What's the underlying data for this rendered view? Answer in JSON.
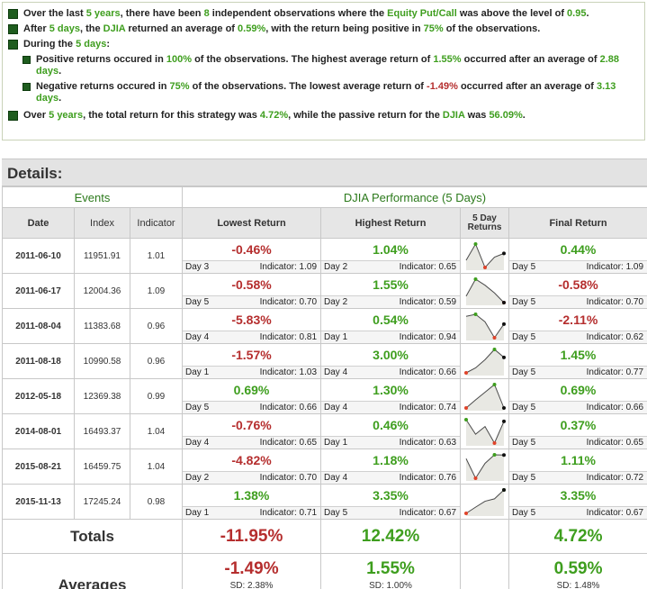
{
  "summary": {
    "b1": [
      "Over the last ",
      "5 years",
      ", there have been ",
      "8",
      " independent observations where the ",
      "Equity Put/Call",
      " was above the level of ",
      "0.95",
      "."
    ],
    "b2": [
      "After ",
      "5 days",
      ", the ",
      "DJIA",
      " returned an average of ",
      "0.59%",
      ", with the return being positive in ",
      "75%",
      " of the observations."
    ],
    "b3": [
      "During the ",
      "5 days",
      ":"
    ],
    "s1": [
      "Positive returns occured in ",
      "100%",
      " of the observations. The highest average return of ",
      "1.55%",
      " occurred after an average of ",
      "2.88 days",
      "."
    ],
    "s2": [
      "Negative returns occured in ",
      "75%",
      " of the observations. The lowest average return of ",
      "-1.49%",
      " occurred after an average of ",
      "3.13 days",
      "."
    ],
    "b4": [
      "Over ",
      "5 years",
      ", the total return for this strategy was ",
      "4.72%",
      ", while the passive return for the ",
      "DJIA",
      " was ",
      "56.09%",
      "."
    ]
  },
  "details": {
    "title": "Details:",
    "group_events": "Events",
    "group_perf": "DJIA Performance (5 Days)",
    "headers": [
      "Date",
      "Index",
      "Indicator",
      "Lowest Return",
      "Highest Return",
      "5 Day Returns",
      "Final Return"
    ],
    "indicator_label": "Indicator:",
    "rows": [
      {
        "date": "2011-06-10",
        "index": "11951.91",
        "indicator": "1.01",
        "low": {
          "v": "-0.46%",
          "day": "Day 3",
          "ind": "1.09"
        },
        "high": {
          "v": "1.04%",
          "day": "Day 2",
          "ind": "0.65"
        },
        "final": {
          "v": "0.44%",
          "day": "Day 5",
          "ind": "1.09"
        }
      },
      {
        "date": "2011-06-17",
        "index": "12004.36",
        "indicator": "1.09",
        "low": {
          "v": "-0.58%",
          "day": "Day 5",
          "ind": "0.70"
        },
        "high": {
          "v": "1.55%",
          "day": "Day 2",
          "ind": "0.59"
        },
        "final": {
          "v": "-0.58%",
          "day": "Day 5",
          "ind": "0.70"
        }
      },
      {
        "date": "2011-08-04",
        "index": "11383.68",
        "indicator": "0.96",
        "low": {
          "v": "-5.83%",
          "day": "Day 4",
          "ind": "0.81"
        },
        "high": {
          "v": "0.54%",
          "day": "Day 1",
          "ind": "0.94"
        },
        "final": {
          "v": "-2.11%",
          "day": "Day 5",
          "ind": "0.62"
        }
      },
      {
        "date": "2011-08-18",
        "index": "10990.58",
        "indicator": "0.96",
        "low": {
          "v": "-1.57%",
          "day": "Day 1",
          "ind": "1.03"
        },
        "high": {
          "v": "3.00%",
          "day": "Day 4",
          "ind": "0.66"
        },
        "final": {
          "v": "1.45%",
          "day": "Day 5",
          "ind": "0.77"
        }
      },
      {
        "date": "2012-05-18",
        "index": "12369.38",
        "indicator": "0.99",
        "low": {
          "v": "0.69%",
          "day": "Day 5",
          "ind": "0.66"
        },
        "high": {
          "v": "1.30%",
          "day": "Day 4",
          "ind": "0.74"
        },
        "final": {
          "v": "0.69%",
          "day": "Day 5",
          "ind": "0.66"
        }
      },
      {
        "date": "2014-08-01",
        "index": "16493.37",
        "indicator": "1.04",
        "low": {
          "v": "-0.76%",
          "day": "Day 4",
          "ind": "0.65"
        },
        "high": {
          "v": "0.46%",
          "day": "Day 1",
          "ind": "0.63"
        },
        "final": {
          "v": "0.37%",
          "day": "Day 5",
          "ind": "0.65"
        }
      },
      {
        "date": "2015-08-21",
        "index": "16459.75",
        "indicator": "1.04",
        "low": {
          "v": "-4.82%",
          "day": "Day 2",
          "ind": "0.70"
        },
        "high": {
          "v": "1.18%",
          "day": "Day 4",
          "ind": "0.76"
        },
        "final": {
          "v": "1.11%",
          "day": "Day 5",
          "ind": "0.72"
        }
      },
      {
        "date": "2015-11-13",
        "index": "17245.24",
        "indicator": "0.98",
        "low": {
          "v": "1.38%",
          "day": "Day 1",
          "ind": "0.71"
        },
        "high": {
          "v": "3.35%",
          "day": "Day 5",
          "ind": "0.67"
        },
        "final": {
          "v": "3.35%",
          "day": "Day 5",
          "ind": "0.67"
        }
      }
    ],
    "totals_label": "Totals",
    "totals": {
      "low": "-11.95%",
      "high": "12.42%",
      "final": "4.72%"
    },
    "averages_label": "Averages",
    "averages": {
      "low": {
        "v": "-1.49%",
        "sd": "SD: 2.38%"
      },
      "high": {
        "v": "1.55%",
        "sd": "SD: 1.00%"
      },
      "final": {
        "v": "0.59%",
        "sd": "SD: 1.48%"
      }
    }
  },
  "sparklines": [
    [
      0.0,
      1.04,
      -0.46,
      0.2,
      0.44
    ],
    [
      0.0,
      1.55,
      1.0,
      0.3,
      -0.58
    ],
    [
      0.0,
      0.54,
      -1.5,
      -5.83,
      -2.11
    ],
    [
      -1.57,
      -0.6,
      1.0,
      3.0,
      1.45
    ],
    [
      0.69,
      0.9,
      1.1,
      1.3,
      0.69
    ],
    [
      0.46,
      -0.3,
      0.1,
      -0.76,
      0.37
    ],
    [
      0.2,
      -4.82,
      -1.0,
      1.18,
      1.11
    ],
    [
      1.38,
      1.9,
      2.4,
      2.6,
      3.35
    ]
  ],
  "colors": {
    "positive": "#3e9e1e",
    "negative": "#b52e2e",
    "spark_fill": "#e8e8e3",
    "spark_line": "#4a4a4a"
  }
}
